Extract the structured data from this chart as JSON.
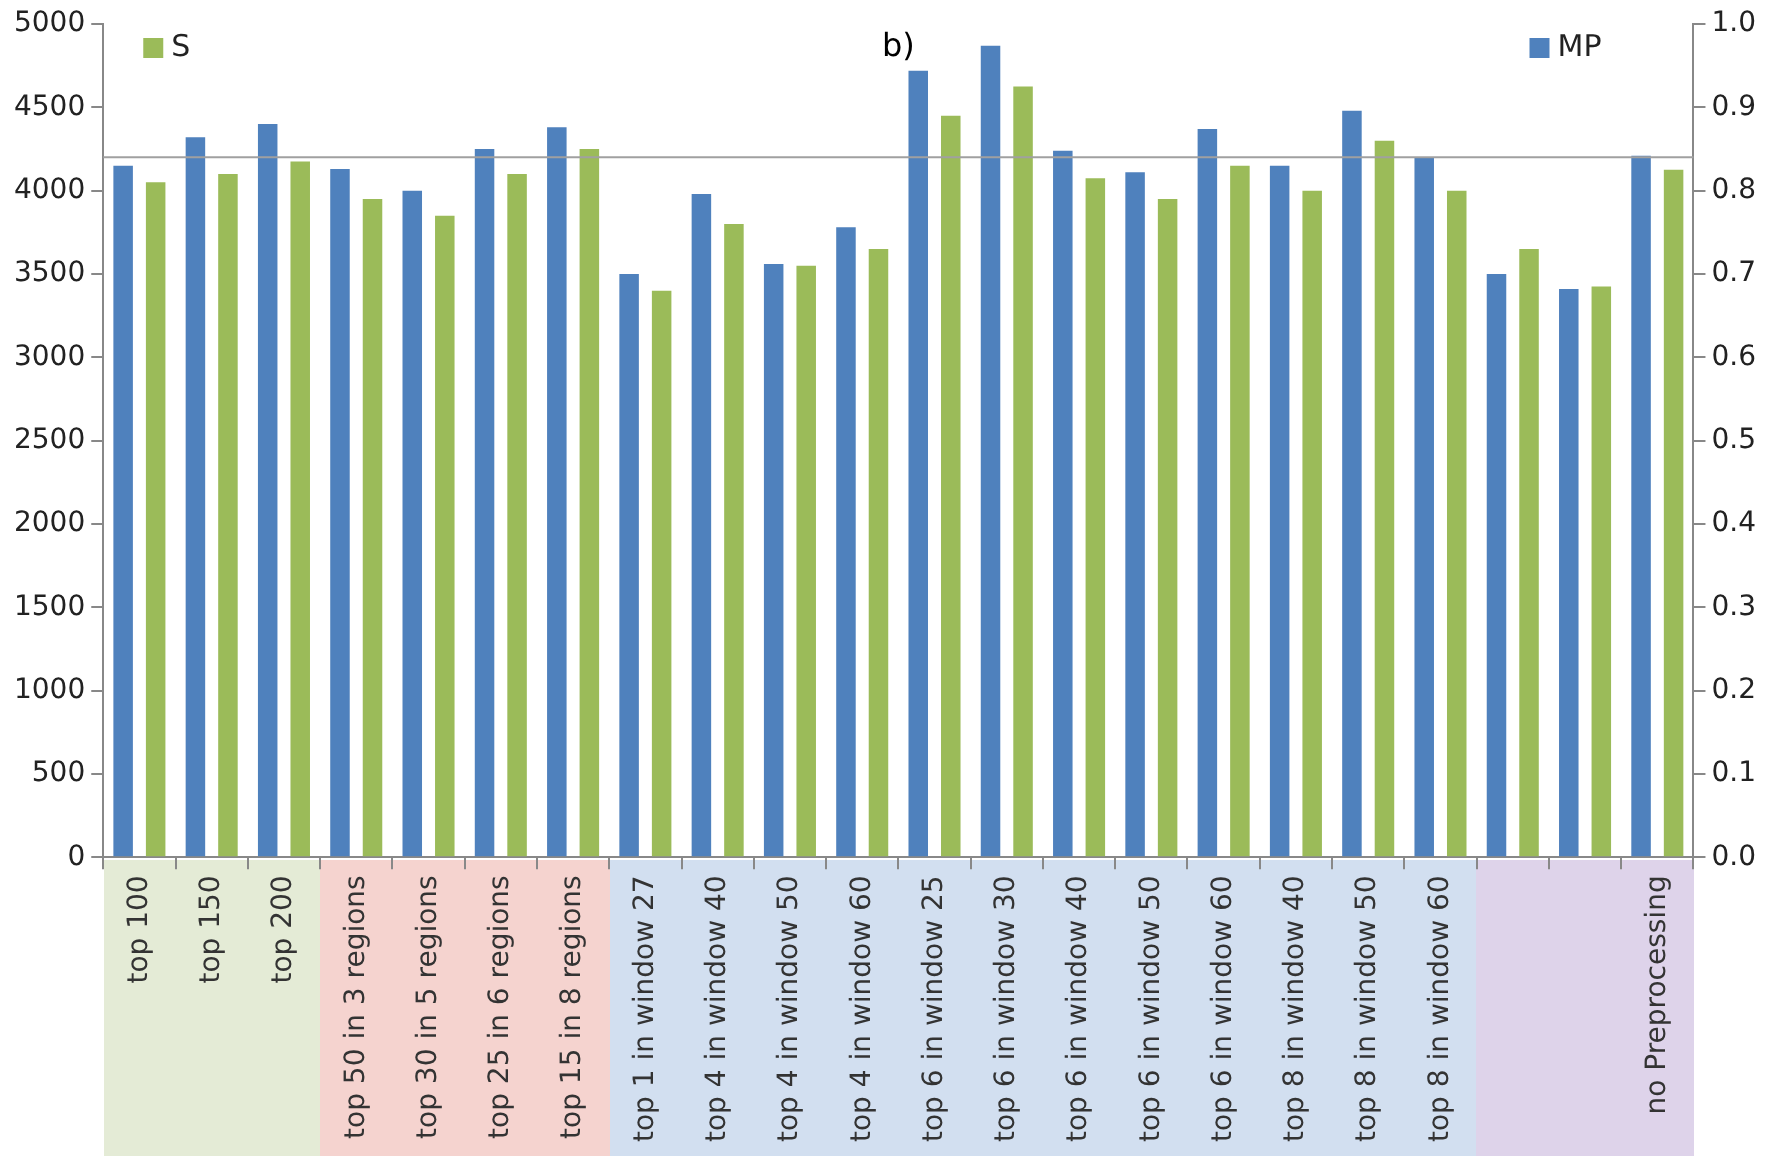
{
  "chart_data": {
    "type": "bar",
    "title": "b)",
    "categories": [
      "top 100",
      "top 150",
      "top 200",
      "top 50 in 3 regions",
      "top 30 in 5 regions",
      "top 25 in 6 regions",
      "top 15 in 8 regions",
      "top 1 in window 27",
      "top 4 in window 40",
      "top 4 in window 50",
      "top 4 in window 60",
      "top 6 in window 25",
      "top 6 in window 30",
      "top 6 in window 40",
      "top 6 in window 50",
      "top 6 in window 60",
      "top 8 in window 40",
      "top 8 in window 50",
      "top 8 in window 60",
      null,
      null,
      "no Preprocessing"
    ],
    "series": [
      {
        "name": "MP",
        "color": "#4f81bd",
        "values": [
          4150,
          4320,
          4400,
          4130,
          4000,
          4250,
          4380,
          3500,
          3980,
          3560,
          3780,
          4720,
          4870,
          4240,
          4110,
          4370,
          4150,
          4480,
          4200,
          3500,
          3410,
          4210
        ]
      },
      {
        "name": "S",
        "color": "#9bbb59",
        "axis": "y2",
        "values": [
          0.81,
          0.82,
          0.835,
          0.79,
          0.77,
          0.82,
          0.85,
          0.68,
          0.76,
          0.71,
          0.73,
          0.89,
          0.925,
          0.815,
          0.79,
          0.83,
          0.8,
          0.86,
          0.8,
          0.73,
          0.685,
          0.825
        ]
      }
    ],
    "ylim": [
      0,
      5000
    ],
    "yticks": [
      0,
      500,
      1000,
      1500,
      2000,
      2500,
      3000,
      3500,
      4000,
      4500,
      5000
    ],
    "y2lim": [
      0,
      1
    ],
    "y2ticks": [
      {
        "value": 0,
        "label": "0.0"
      },
      {
        "value": 0.1,
        "label": "0.1"
      },
      {
        "value": 0.2,
        "label": "0.2"
      },
      {
        "value": 0.3,
        "label": "0.3"
      },
      {
        "value": 0.4,
        "label": "0.4"
      },
      {
        "value": 0.5,
        "label": "0.5"
      },
      {
        "value": 0.6,
        "label": "0.6"
      },
      {
        "value": 0.7,
        "label": "0.7"
      },
      {
        "value": 0.8,
        "label": "0.8"
      },
      {
        "value": 0.9,
        "label": "0.9"
      },
      {
        "value": 1,
        "label": "1.0"
      }
    ],
    "ref_lines": [
      {
        "axis": "y",
        "value": 4200,
        "color": "#a0a0a0"
      }
    ],
    "grid": false,
    "legend": "top"
  }
}
